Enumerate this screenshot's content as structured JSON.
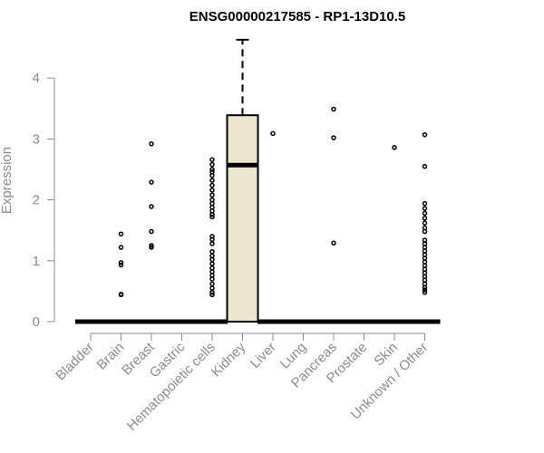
{
  "chart_data": {
    "type": "box",
    "title": "ENSG00000217585 - RP1-13D10.5",
    "ylabel": "Expression",
    "xlabel": "",
    "ylim": [
      0,
      4.65
    ],
    "yticks": [
      0,
      1,
      2,
      3,
      4
    ],
    "ytick_labels": [
      "0",
      "1",
      "2",
      "3",
      "4"
    ],
    "categories": [
      "Bladder",
      "Brain",
      "Breast",
      "Gastric",
      "Hematopoietic cells",
      "Kidney",
      "Liver",
      "Lung",
      "Pancreas",
      "Prostate",
      "Skin",
      "Unknown / Other"
    ],
    "box_fill": "#ede6cf",
    "box_stroke": "#000000",
    "boxes": [
      {
        "category": "Bladder",
        "q1": 0,
        "median": 0,
        "q3": 0,
        "whisker_low": 0,
        "whisker_high": 0,
        "outliers": []
      },
      {
        "category": "Brain",
        "q1": 0,
        "median": 0,
        "q3": 0,
        "whisker_low": 0,
        "whisker_high": 0,
        "outliers": [
          0.44,
          0.45,
          0.93,
          0.97,
          1.22,
          1.44
        ]
      },
      {
        "category": "Breast",
        "q1": 0,
        "median": 0,
        "q3": 0,
        "whisker_low": 0,
        "whisker_high": 0,
        "outliers": [
          1.22,
          1.25,
          1.48,
          1.89,
          2.29,
          2.92
        ]
      },
      {
        "category": "Gastric",
        "q1": 0,
        "median": 0,
        "q3": 0,
        "whisker_low": 0,
        "whisker_high": 0,
        "outliers": []
      },
      {
        "category": "Hematopoietic cells",
        "q1": 0,
        "median": 0,
        "q3": 0,
        "whisker_low": 0,
        "whisker_high": 0,
        "outliers": [
          0.44,
          0.48,
          0.55,
          0.62,
          0.7,
          0.76,
          0.82,
          0.88,
          0.95,
          1.02,
          1.08,
          1.15,
          1.28,
          1.35,
          1.4,
          1.72,
          1.76,
          1.82,
          1.88,
          1.94,
          2.0,
          2.08,
          2.16,
          2.24,
          2.32,
          2.4,
          2.46,
          2.5,
          2.58,
          2.66
        ]
      },
      {
        "category": "Kidney",
        "q1": 0,
        "median": 2.57,
        "q3": 3.39,
        "whisker_low": 0,
        "whisker_high": 4.63,
        "outliers": []
      },
      {
        "category": "Liver",
        "q1": 0,
        "median": 0,
        "q3": 0,
        "whisker_low": 0,
        "whisker_high": 0,
        "outliers": [
          3.09
        ]
      },
      {
        "category": "Lung",
        "q1": 0,
        "median": 0,
        "q3": 0,
        "whisker_low": 0,
        "whisker_high": 0,
        "outliers": []
      },
      {
        "category": "Pancreas",
        "q1": 0,
        "median": 0,
        "q3": 0,
        "whisker_low": 0,
        "whisker_high": 0,
        "outliers": [
          1.29,
          3.02,
          3.49
        ]
      },
      {
        "category": "Prostate",
        "q1": 0,
        "median": 0,
        "q3": 0,
        "whisker_low": 0,
        "whisker_high": 0,
        "outliers": []
      },
      {
        "category": "Skin",
        "q1": 0,
        "median": 0,
        "q3": 0,
        "whisker_low": 0,
        "whisker_high": 0,
        "outliers": [
          2.86
        ]
      },
      {
        "category": "Unknown / Other",
        "q1": 0,
        "median": 0,
        "q3": 0,
        "whisker_low": 0,
        "whisker_high": 0,
        "outliers": [
          0.48,
          0.52,
          0.56,
          0.62,
          0.68,
          0.74,
          0.8,
          0.86,
          0.92,
          0.98,
          1.04,
          1.1,
          1.16,
          1.22,
          1.28,
          1.34,
          1.48,
          1.54,
          1.62,
          1.7,
          1.78,
          1.86,
          1.94,
          2.55,
          3.07
        ]
      }
    ]
  }
}
